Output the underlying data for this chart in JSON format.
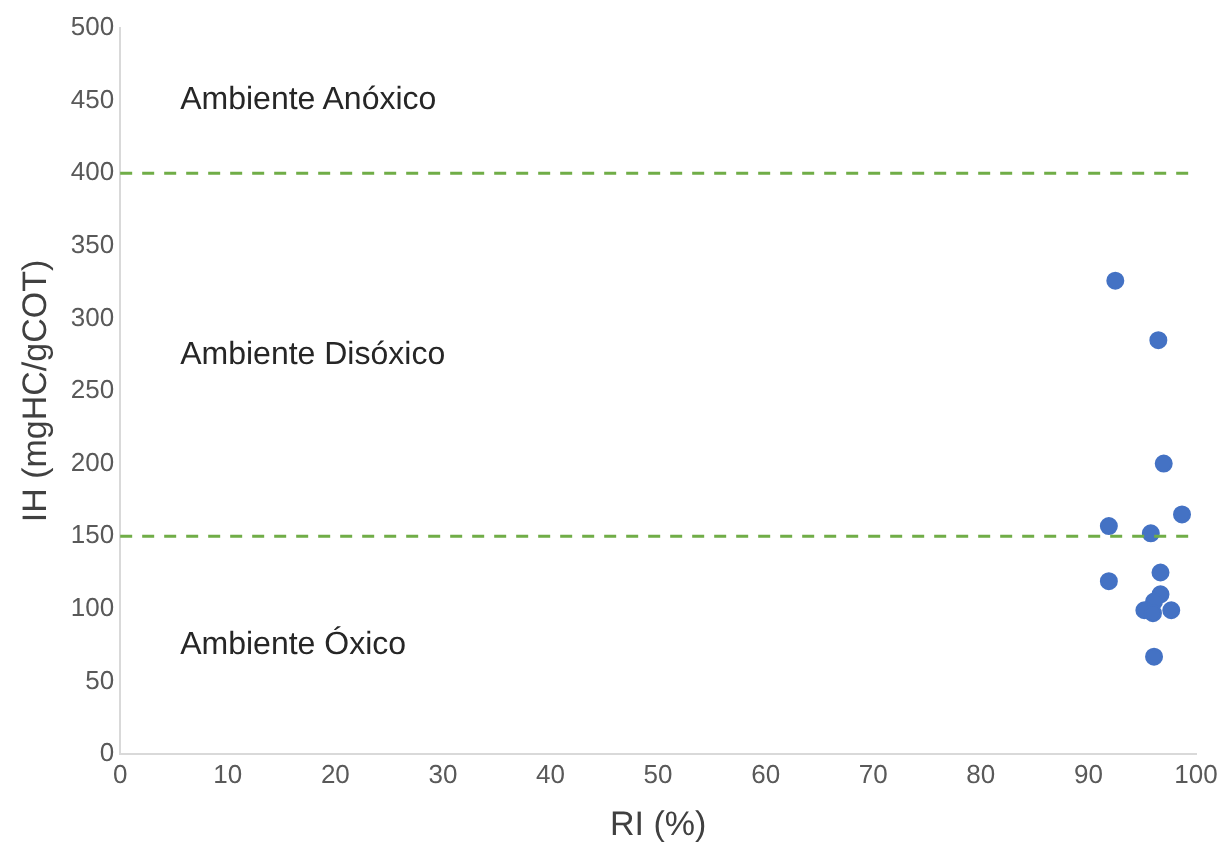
{
  "chart_data": {
    "type": "scatter",
    "xlabel": "RI (%)",
    "ylabel": "IH (mgHC/gCOT)",
    "series": [
      {
        "color": "#4472c4",
        "x": [
          92.5,
          96.5,
          97.0,
          98.7,
          91.9,
          95.8,
          91.9,
          96.7,
          96.7,
          96.1,
          95.2,
          96.0,
          97.7,
          96.1
        ],
        "values": [
          326,
          285,
          200,
          165,
          157,
          152,
          119,
          125,
          110,
          105,
          99,
          97,
          99,
          67
        ]
      }
    ],
    "xlim": [
      0,
      100
    ],
    "xticks": [
      0,
      10,
      20,
      30,
      40,
      50,
      60,
      70,
      80,
      90,
      100
    ],
    "ylim": [
      0,
      500
    ],
    "yticks": [
      0,
      50,
      100,
      150,
      200,
      250,
      300,
      350,
      400,
      450,
      500
    ],
    "grid": false,
    "legend": false,
    "marker": "circle",
    "ref_lines": [
      {
        "axis": "y",
        "value": 400,
        "color": "#70ad47",
        "line_style": "dashed"
      },
      {
        "axis": "y",
        "value": 150,
        "color": "#70ad47",
        "line_style": "dashed"
      }
    ],
    "annotations": [
      "Ambiente Anóxico",
      "Ambiente Disóxico",
      "Ambiente Óxico"
    ]
  }
}
